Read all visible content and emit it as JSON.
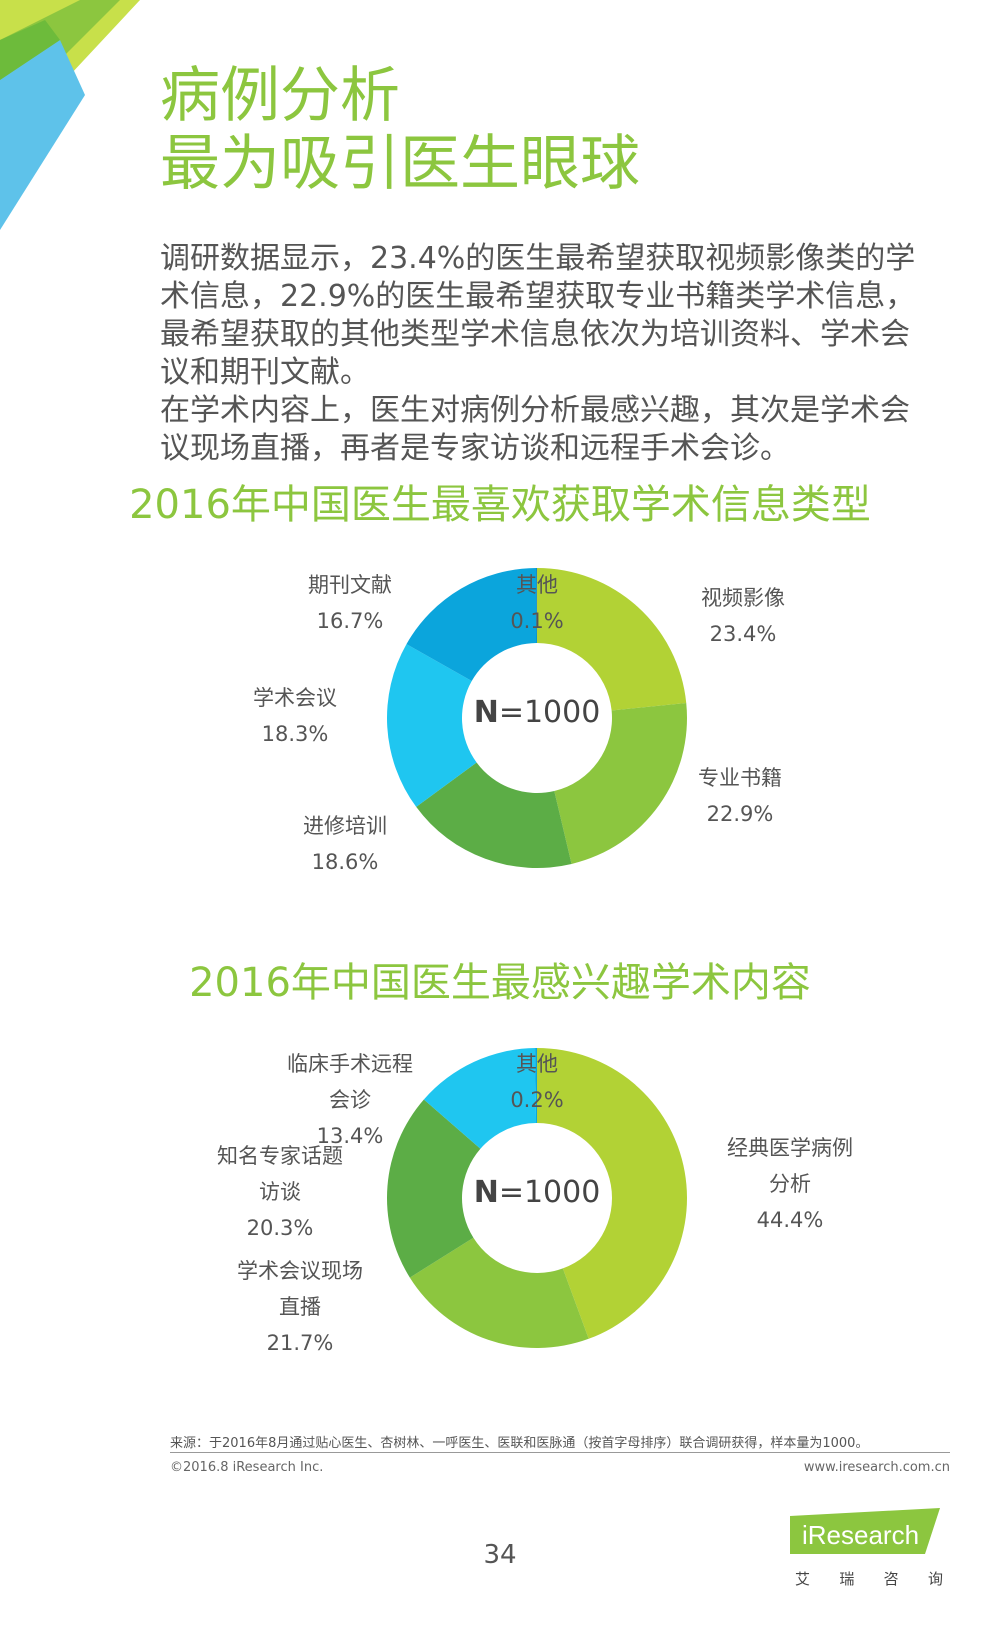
{
  "headline": {
    "line1": "病例分析",
    "line2": "最为吸引医生眼球"
  },
  "intro": {
    "p1": "调研数据显示，23.4%的医生最希望获取视频影像类的学术信息，22.9%的医生最希望获取专业书籍类学术信息，最希望获取的其他类型学术信息依次为培训资料、学术会议和期刊文献。",
    "p2": "在学术内容上，医生对病例分析最感兴趣，其次是学术会议现场直播，再者是专家访谈和远程手术会诊。"
  },
  "chart_data": [
    {
      "type": "pie",
      "title": "2016年中国医生最喜欢获取学术信息类型",
      "center_label": {
        "n": "N",
        "value": "=1000"
      },
      "slices": [
        {
          "label": [
            "视频影像"
          ],
          "value": 23.4,
          "display": "23.4%",
          "color": "#b2d235"
        },
        {
          "label": [
            "专业书籍"
          ],
          "value": 22.9,
          "display": "22.9%",
          "color": "#8cc63f"
        },
        {
          "label": [
            "进修培训"
          ],
          "value": 18.6,
          "display": "18.6%",
          "color": "#5cad46"
        },
        {
          "label": [
            "学术会议"
          ],
          "value": 18.3,
          "display": "18.3%",
          "color": "#1fc6f0"
        },
        {
          "label": [
            "期刊文献"
          ],
          "value": 16.7,
          "display": "16.7%",
          "color": "#0ba5dc"
        },
        {
          "label": [
            "其他"
          ],
          "value": 0.1,
          "display": "0.1%",
          "color": "#0a7fc0"
        }
      ]
    },
    {
      "type": "pie",
      "title": "2016年中国医生最感兴趣学术内容",
      "center_label": {
        "n": "N",
        "value": "=1000"
      },
      "slices": [
        {
          "label": [
            "经典医学病例",
            "分析"
          ],
          "value": 44.4,
          "display": "44.4%",
          "color": "#b2d235"
        },
        {
          "label": [
            "学术会议现场",
            "直播"
          ],
          "value": 21.7,
          "display": "21.7%",
          "color": "#8cc63f"
        },
        {
          "label": [
            "知名专家话题",
            "访谈"
          ],
          "value": 20.3,
          "display": "20.3%",
          "color": "#5cad46"
        },
        {
          "label": [
            "临床手术远程",
            "会诊"
          ],
          "value": 13.4,
          "display": "13.4%",
          "color": "#1fc6f0"
        },
        {
          "label": [
            "其他"
          ],
          "value": 0.2,
          "display": "0.2%",
          "color": "#0ba5dc"
        }
      ]
    }
  ],
  "footer": {
    "source": "来源：于2016年8月通过贴心医生、杏树林、一呼医生、医联和医脉通（按首字母排序）联合调研获得，样本量为1000。",
    "copyright": "©2016.8  iResearch  Inc.",
    "website": "www.iresearch.com.cn",
    "page_number": "34",
    "logo_text": "iResearch",
    "logo_sub": [
      "艾",
      "瑞",
      "咨",
      "询"
    ]
  }
}
